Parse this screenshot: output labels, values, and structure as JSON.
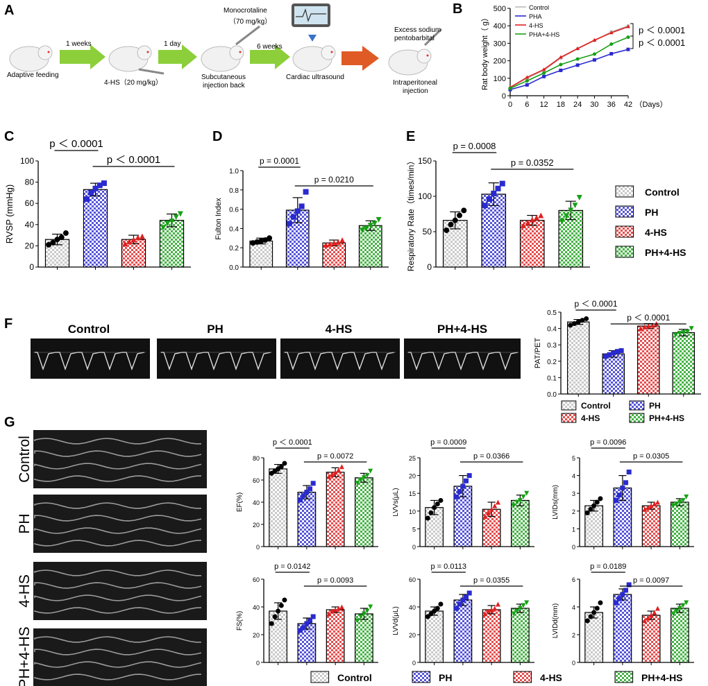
{
  "colors": {
    "control": "#bbbbbb",
    "ph": "#2a2ad0",
    "hs": "#e02020",
    "phhs": "#16a016",
    "arrow_green": "#8ccf3a",
    "arrow_red": "#e05a25"
  },
  "panel_labels": [
    "A",
    "B",
    "C",
    "D",
    "E",
    "F",
    "G"
  ],
  "panel_a": {
    "labels": {
      "adaptive": "Adaptive feeding",
      "week1": "1 weeks",
      "hs_dose": "4-HS（20 mg/kg）",
      "day1": "1 day",
      "mct": "Monocrotaline",
      "mct_dose": "（70 mg/kg）",
      "subq1": "Subcutaneous",
      "subq2": "injection back",
      "week6": "6 weeks",
      "ultrasound": "Cardiac ultrasound",
      "excess1": "Excess sodium",
      "excess2": "pentobarbital",
      "ip1": "Intraperitoneal",
      "ip2": "injection"
    }
  },
  "legend_groups": [
    "Control",
    "PH",
    "4-HS",
    "PH+4-HS"
  ],
  "chart_data": [
    {
      "id": "B",
      "type": "line",
      "ylabel": "Rat body weight（ g）",
      "xlabel": "（Days）",
      "x": [
        0,
        6,
        12,
        18,
        24,
        30,
        36,
        42
      ],
      "ylim": [
        0,
        500
      ],
      "yticks": [
        0,
        100,
        200,
        300,
        400,
        500
      ],
      "series": [
        {
          "name": "Control",
          "values": [
            45,
            100,
            145,
            215,
            268,
            315,
            365,
            400
          ]
        },
        {
          "name": "PHA",
          "values": [
            35,
            62,
            110,
            145,
            175,
            205,
            240,
            265
          ]
        },
        {
          "name": "4-HS",
          "values": [
            48,
            105,
            150,
            220,
            270,
            318,
            360,
            395
          ]
        },
        {
          "name": "PHA+4-HS",
          "values": [
            42,
            85,
            130,
            178,
            210,
            238,
            295,
            335
          ]
        }
      ],
      "annotations": [
        "p ＜ 0.0001",
        "p ＜ 0.0001"
      ]
    },
    {
      "id": "C",
      "type": "bar",
      "ylabel": "RVSP (mmHg)",
      "ylim": [
        0,
        100
      ],
      "yticks": [
        0,
        20,
        40,
        60,
        80,
        100
      ],
      "values": [
        26,
        73,
        26,
        44
      ],
      "errors": [
        5,
        6,
        4,
        6
      ],
      "points": [
        [
          21,
          23,
          26,
          28,
          32
        ],
        [
          64,
          70,
          74,
          77,
          79
        ],
        [
          22,
          24,
          26,
          28,
          29
        ],
        [
          37,
          41,
          43,
          47,
          50
        ]
      ],
      "comparisons": [
        {
          "a": 0,
          "b": 1,
          "label": "p ＜ 0.0001"
        },
        {
          "a": 1,
          "b": 3,
          "label": "p ＜ 0.0001"
        }
      ]
    },
    {
      "id": "D",
      "type": "bar",
      "ylabel": "Fulton Index",
      "ylim": [
        0,
        1.0
      ],
      "yticks": [
        0.0,
        0.2,
        0.4,
        0.6,
        0.8,
        1.0
      ],
      "values": [
        0.27,
        0.59,
        0.25,
        0.43
      ],
      "errors": [
        0.03,
        0.13,
        0.03,
        0.05
      ],
      "points": [
        [
          0.25,
          0.26,
          0.27,
          0.28,
          0.3
        ],
        [
          0.45,
          0.52,
          0.58,
          0.63,
          0.78
        ],
        [
          0.23,
          0.24,
          0.25,
          0.26,
          0.28
        ],
        [
          0.38,
          0.4,
          0.43,
          0.45,
          0.49
        ]
      ],
      "comparisons": [
        {
          "a": 0,
          "b": 1,
          "label": "p = 0.0001"
        },
        {
          "a": 1,
          "b": 3,
          "label": "p = 0.0210"
        }
      ]
    },
    {
      "id": "E",
      "type": "bar",
      "ylabel": "Respiratory Rate（times/min）",
      "ylim": [
        0,
        150
      ],
      "yticks": [
        0,
        50,
        100,
        150
      ],
      "values": [
        66,
        103,
        66,
        80
      ],
      "errors": [
        12,
        16,
        7,
        13
      ],
      "points": [
        [
          52,
          60,
          66,
          73,
          80
        ],
        [
          87,
          96,
          104,
          111,
          118
        ],
        [
          59,
          63,
          67,
          70,
          73
        ],
        [
          65,
          72,
          80,
          87,
          98
        ]
      ],
      "comparisons": [
        {
          "a": 0,
          "b": 1,
          "label": "p = 0.0008"
        },
        {
          "a": 1,
          "b": 3,
          "label": "p = 0.0352"
        }
      ]
    },
    {
      "id": "F",
      "type": "bar",
      "ylabel": "PAT/PET",
      "ylim": [
        0,
        0.5
      ],
      "yticks": [
        0.0,
        0.1,
        0.2,
        0.3,
        0.4,
        0.5
      ],
      "values": [
        0.44,
        0.245,
        0.415,
        0.375
      ],
      "errors": [
        0.015,
        0.02,
        0.015,
        0.02
      ],
      "points": [
        [
          0.42,
          0.43,
          0.44,
          0.45,
          0.46
        ],
        [
          0.23,
          0.24,
          0.25,
          0.26,
          0.265
        ],
        [
          0.4,
          0.41,
          0.415,
          0.42,
          0.43
        ],
        [
          0.36,
          0.37,
          0.375,
          0.38,
          0.4
        ]
      ],
      "comparisons": [
        {
          "a": 0,
          "b": 1,
          "label": "p ＜ 0.0001"
        },
        {
          "a": 1,
          "b": 3,
          "label": "p ＜ 0.0001"
        }
      ]
    },
    {
      "id": "G-EF",
      "type": "bar",
      "ylabel": "EF(%)",
      "ylim": [
        0,
        80
      ],
      "yticks": [
        0,
        20,
        40,
        60,
        80
      ],
      "values": [
        70,
        49,
        67,
        62
      ],
      "errors": [
        4,
        6,
        4,
        4
      ],
      "points": [
        [
          66,
          68,
          70,
          72,
          75
        ],
        [
          42,
          46,
          49,
          52,
          57
        ],
        [
          63,
          65,
          67,
          69,
          72
        ],
        [
          57,
          60,
          62,
          64,
          68
        ]
      ],
      "comparisons": [
        {
          "a": 0,
          "b": 1,
          "label": "p ＜ 0.0001"
        },
        {
          "a": 1,
          "b": 3,
          "label": "p = 0.0072"
        }
      ]
    },
    {
      "id": "G-LVVs",
      "type": "bar",
      "ylabel": "LVVs(μL)",
      "ylim": [
        0,
        25
      ],
      "yticks": [
        0,
        5,
        10,
        15,
        20,
        25
      ],
      "values": [
        11,
        17,
        10.5,
        13
      ],
      "errors": [
        2,
        3,
        2,
        1.5
      ],
      "points": [
        [
          8,
          9.5,
          11,
          12,
          13
        ],
        [
          14,
          15.5,
          17,
          18.5,
          20
        ],
        [
          8.5,
          9.5,
          10.5,
          11.5,
          12.5
        ],
        [
          11.5,
          12.5,
          13,
          14,
          15
        ]
      ],
      "comparisons": [
        {
          "a": 0,
          "b": 1,
          "label": "p = 0.0009"
        },
        {
          "a": 1,
          "b": 3,
          "label": "p = 0.0366"
        }
      ]
    },
    {
      "id": "G-LVIDs",
      "type": "bar",
      "ylabel": "LVIDs(mm)",
      "ylim": [
        0,
        5
      ],
      "yticks": [
        0,
        1,
        2,
        3,
        4,
        5
      ],
      "values": [
        2.3,
        3.3,
        2.3,
        2.5
      ],
      "errors": [
        0.3,
        0.7,
        0.2,
        0.2
      ],
      "points": [
        [
          1.9,
          2.1,
          2.3,
          2.5,
          2.7
        ],
        [
          2.6,
          2.9,
          3.3,
          3.6,
          4.2
        ],
        [
          2.1,
          2.2,
          2.3,
          2.4,
          2.5
        ],
        [
          2.3,
          2.4,
          2.5,
          2.6,
          2.8
        ]
      ],
      "comparisons": [
        {
          "a": 0,
          "b": 1,
          "label": "p = 0.0096"
        },
        {
          "a": 1,
          "b": 3,
          "label": "p = 0.0305"
        }
      ]
    },
    {
      "id": "G-FS",
      "type": "bar",
      "ylabel": "FS(%)",
      "ylim": [
        0,
        60
      ],
      "yticks": [
        0,
        20,
        40,
        60
      ],
      "values": [
        37,
        28,
        38,
        35
      ],
      "errors": [
        6,
        4,
        2,
        4
      ],
      "points": [
        [
          28,
          33,
          37,
          41,
          45
        ],
        [
          23,
          25,
          28,
          30,
          33
        ],
        [
          35,
          37,
          38,
          39,
          40
        ],
        [
          30,
          33,
          35,
          37,
          40
        ]
      ],
      "comparisons": [
        {
          "a": 0,
          "b": 1,
          "label": "p = 0.0142"
        },
        {
          "a": 1,
          "b": 3,
          "label": "p = 0.0093"
        }
      ]
    },
    {
      "id": "G-LVVd",
      "type": "bar",
      "ylabel": "LVVd(μL)",
      "ylim": [
        0,
        60
      ],
      "yticks": [
        0,
        20,
        40,
        60
      ],
      "values": [
        37,
        45,
        38,
        39
      ],
      "errors": [
        3,
        4,
        3,
        3
      ],
      "points": [
        [
          33,
          35,
          37,
          39,
          42
        ],
        [
          39,
          42,
          45,
          47,
          50
        ],
        [
          35,
          37,
          38,
          39,
          42
        ],
        [
          35,
          37,
          39,
          41,
          43
        ]
      ],
      "comparisons": [
        {
          "a": 0,
          "b": 1,
          "label": "p = 0.0113"
        },
        {
          "a": 1,
          "b": 3,
          "label": "p = 0.0355"
        }
      ]
    },
    {
      "id": "G-LVIDd",
      "type": "bar",
      "ylabel": "LVIDd(mm)",
      "ylim": [
        0,
        6
      ],
      "yticks": [
        0,
        2,
        4,
        6
      ],
      "values": [
        3.6,
        4.9,
        3.4,
        3.9
      ],
      "errors": [
        0.4,
        0.4,
        0.3,
        0.3
      ],
      "points": [
        [
          3.0,
          3.3,
          3.6,
          3.9,
          4.3
        ],
        [
          4.3,
          4.6,
          4.9,
          5.2,
          5.6
        ],
        [
          3.0,
          3.2,
          3.4,
          3.6,
          3.9
        ],
        [
          3.5,
          3.7,
          3.9,
          4.1,
          4.3
        ]
      ],
      "comparisons": [
        {
          "a": 0,
          "b": 1,
          "label": "p = 0.0189"
        },
        {
          "a": 1,
          "b": 3,
          "label": "p = 0.0097"
        }
      ]
    }
  ],
  "panel_f": {
    "image_titles": [
      "Control",
      "PH",
      "4-HS",
      "PH+4-HS"
    ]
  },
  "panel_g": {
    "image_labels": [
      "Control",
      "PH",
      "4-HS",
      "PH+4-HS"
    ]
  },
  "legend_b": [
    "Control",
    "PHA",
    "4-HS",
    "PHA+4-HS"
  ]
}
